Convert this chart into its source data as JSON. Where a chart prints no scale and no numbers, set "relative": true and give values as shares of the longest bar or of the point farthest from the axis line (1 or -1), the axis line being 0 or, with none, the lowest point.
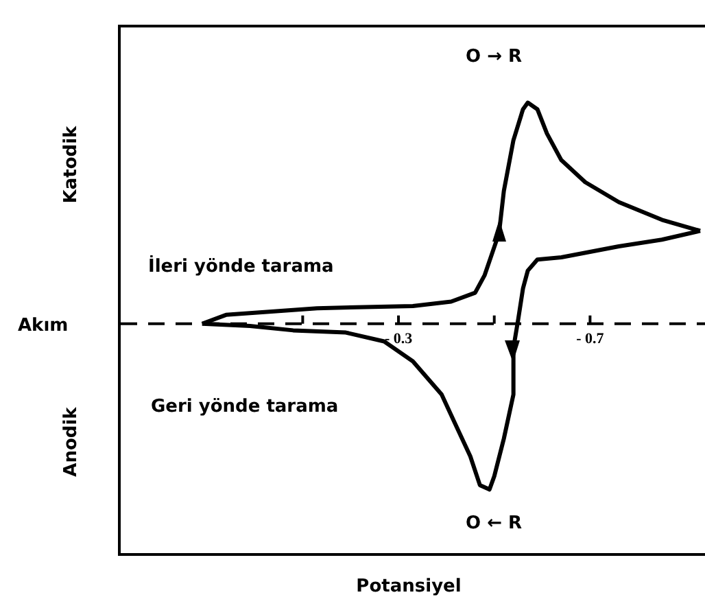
{
  "chart_data": {
    "type": "line",
    "relative": true,
    "xlabel": "Potansiyel",
    "ref_lines": [
      {
        "axis": "y",
        "value": 0,
        "label": "Akım",
        "color": "#000000",
        "line_style": "dashed"
      }
    ],
    "annotations": [
      "Katodik",
      "Anodik",
      "O → R",
      "O ← R",
      "İleri yönde tarama",
      "Geri yönde tarama"
    ],
    "xlim": [
      0.28,
      -0.94
    ],
    "xticks": [
      {
        "value": -0.1,
        "label": null
      },
      {
        "value": -0.3,
        "label": "- 0.3"
      },
      {
        "value": -0.5,
        "label": null
      },
      {
        "value": -0.7,
        "label": "- 0.7"
      }
    ],
    "marker": "none",
    "line_style": "solid",
    "series": [
      {
        "color": "#000000",
        "x": [
          0.11,
          0.06,
          -0.13,
          -0.33,
          -0.41,
          -0.46,
          -0.48,
          -0.51,
          -0.52,
          -0.54,
          -0.56,
          -0.57,
          -0.59,
          -0.61,
          -0.64,
          -0.69,
          -0.76,
          -0.85,
          -0.93
        ],
        "values": [
          0,
          0.04,
          0.07,
          0.08,
          0.1,
          0.14,
          0.22,
          0.41,
          0.6,
          0.83,
          0.97,
          1,
          0.97,
          0.86,
          0.74,
          0.64,
          0.55,
          0.47,
          0.42
        ]
      },
      {
        "color": "#000000",
        "x": [
          -0.93,
          -0.85,
          -0.76,
          -0.64,
          -0.59,
          -0.57,
          -0.56,
          -0.55,
          -0.54,
          -0.54,
          -0.52,
          -0.5,
          -0.49,
          -0.47,
          -0.45,
          -0.42,
          -0.39,
          -0.33,
          -0.27,
          -0.19,
          -0.08,
          0.01,
          0.11
        ],
        "values": [
          0.42,
          0.38,
          0.35,
          0.3,
          0.29,
          0.24,
          0.16,
          0.02,
          -0.11,
          -0.32,
          -0.52,
          -0.69,
          -0.75,
          -0.73,
          -0.6,
          -0.46,
          -0.32,
          -0.17,
          -0.08,
          -0.04,
          -0.03,
          -0.01,
          0
        ]
      }
    ]
  }
}
